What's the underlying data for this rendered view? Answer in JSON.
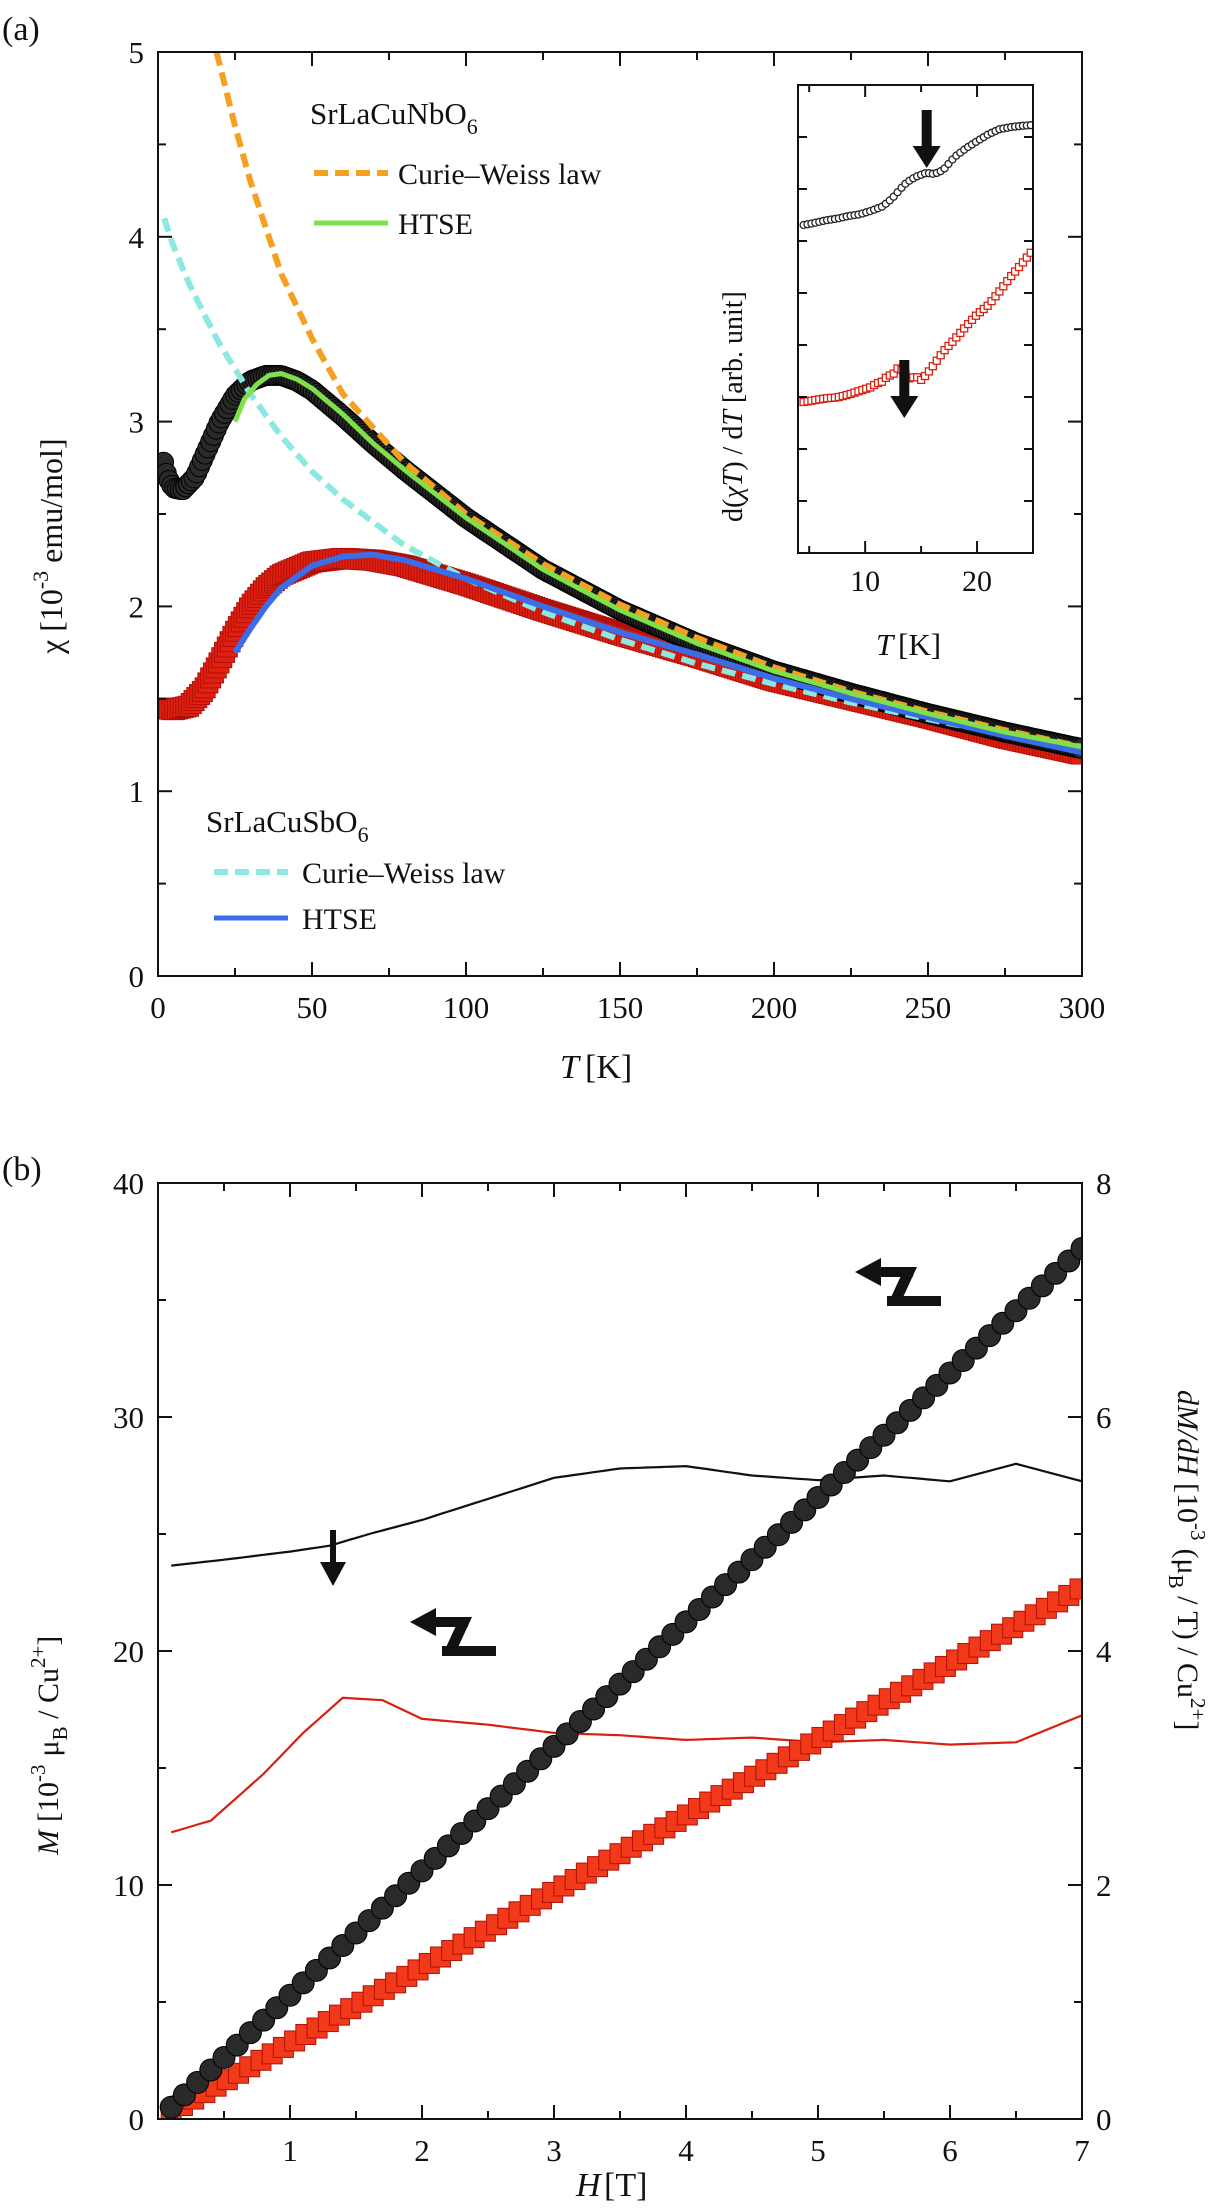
{
  "chart_data": [
    {
      "panel": "(a)",
      "type": "line",
      "xlabel_var": "T",
      "xlabel_unit": "[K]",
      "ylabel_sym": "χ",
      "ylabel_pre": "[10",
      "ylabel_exp": "-3",
      "ylabel_post": " emu/mol]",
      "xlim": [
        0,
        300
      ],
      "ylim": [
        0,
        5
      ],
      "xticks": [
        "0",
        "50",
        "100",
        "150",
        "200",
        "250",
        "300"
      ],
      "yticks": [
        "0",
        "1",
        "2",
        "3",
        "4",
        "5"
      ],
      "legend_nb_title": "SrLaCuNbO",
      "legend_nb_sub": "6",
      "legend_sb_title": "SrLaCuSbO",
      "legend_sb_sub": "6",
      "legend_cw": "Curie–Weiss law",
      "legend_htse": "HTSE",
      "colors": {
        "nb_data": "#1a1a1a",
        "sb_data": "#e02010",
        "nb_cw": "#f5a020",
        "nb_htse": "#7fe04a",
        "sb_cw": "#8ce8e0",
        "sb_htse": "#3b6de8"
      },
      "series": [
        {
          "name": "SrLaCuNbO6 data",
          "x": [
            1.8,
            3,
            5,
            8,
            12,
            16,
            20,
            25,
            30,
            35,
            40,
            45,
            50,
            60,
            70,
            80,
            100,
            125,
            150,
            175,
            200,
            225,
            250,
            275,
            300
          ],
          "y": [
            2.78,
            2.7,
            2.64,
            2.63,
            2.7,
            2.85,
            3.0,
            3.14,
            3.22,
            3.25,
            3.25,
            3.22,
            3.17,
            3.03,
            2.88,
            2.74,
            2.48,
            2.2,
            1.98,
            1.8,
            1.65,
            1.53,
            1.42,
            1.32,
            1.23
          ]
        },
        {
          "name": "SrLaCuSbO6 data",
          "x": [
            1.8,
            5,
            10,
            15,
            20,
            25,
            30,
            35,
            40,
            50,
            60,
            70,
            80,
            90,
            100,
            125,
            150,
            175,
            200,
            225,
            250,
            275,
            300
          ],
          "y": [
            1.45,
            1.44,
            1.46,
            1.55,
            1.7,
            1.86,
            2.0,
            2.1,
            2.17,
            2.24,
            2.26,
            2.25,
            2.22,
            2.17,
            2.12,
            1.98,
            1.85,
            1.73,
            1.6,
            1.5,
            1.4,
            1.29,
            1.2
          ]
        },
        {
          "name": "SrLaCuNbO6 Curie-Weiss law",
          "x": [
            19,
            25,
            30,
            40,
            50,
            60,
            80,
            100,
            125,
            150,
            175,
            200,
            225,
            250,
            275,
            300
          ],
          "y": [
            5.0,
            4.6,
            4.3,
            3.8,
            3.45,
            3.15,
            2.78,
            2.5,
            2.23,
            2.01,
            1.83,
            1.67,
            1.54,
            1.43,
            1.33,
            1.24
          ]
        },
        {
          "name": "SrLaCuNbO6 HTSE",
          "x": [
            25,
            28,
            32,
            36,
            40,
            45,
            50,
            60,
            70,
            80,
            100,
            125,
            150,
            175,
            200,
            225,
            250,
            275,
            300
          ],
          "y": [
            3.0,
            3.12,
            3.2,
            3.25,
            3.26,
            3.23,
            3.18,
            3.04,
            2.88,
            2.74,
            2.48,
            2.2,
            1.98,
            1.8,
            1.65,
            1.53,
            1.42,
            1.32,
            1.24
          ]
        },
        {
          "name": "SrLaCuSbO6 Curie-Weiss law",
          "x": [
            2,
            5,
            10,
            15,
            20,
            30,
            40,
            50,
            60,
            80,
            100,
            125,
            150,
            175,
            200,
            225,
            250,
            275,
            300
          ],
          "y": [
            4.1,
            3.95,
            3.75,
            3.58,
            3.42,
            3.15,
            2.92,
            2.73,
            2.58,
            2.33,
            2.15,
            1.97,
            1.82,
            1.69,
            1.58,
            1.48,
            1.39,
            1.31,
            1.23
          ]
        },
        {
          "name": "SrLaCuSbO6 HTSE",
          "x": [
            25,
            30,
            35,
            40,
            50,
            60,
            70,
            80,
            90,
            100,
            125,
            150,
            175,
            200,
            225,
            250,
            275,
            300
          ],
          "y": [
            1.75,
            1.88,
            2.0,
            2.1,
            2.22,
            2.27,
            2.28,
            2.25,
            2.2,
            2.15,
            2.0,
            1.86,
            1.74,
            1.61,
            1.5,
            1.4,
            1.3,
            1.21
          ]
        }
      ]
    },
    {
      "panel": "inset of (a)",
      "type": "scatter",
      "xlabel_var": "T",
      "xlabel_unit": "[K]",
      "ylabel_pre": "d(",
      "ylabel_mid": "χT",
      "ylabel_mid2": ") / d",
      "ylabel_var": "T",
      "ylabel_post": "  [arb. unit]",
      "xlim": [
        4,
        25
      ],
      "xticks": [
        "10",
        "20"
      ],
      "arrow_labels_x": [
        15.5,
        13.5
      ],
      "series": [
        {
          "name": "SrLaCuNbO6",
          "x": [
            4.5,
            5.5,
            6.5,
            7.5,
            8.5,
            9.5,
            10.5,
            11.5,
            12,
            12.5,
            13,
            13.5,
            14,
            14.5,
            15,
            15.5,
            16,
            16.5,
            17,
            17.5,
            18,
            19,
            20,
            21,
            22,
            23,
            24,
            25
          ],
          "y": [
            0.15,
            0.2,
            0.26,
            0.3,
            0.36,
            0.4,
            0.48,
            0.58,
            0.68,
            0.8,
            0.95,
            1.1,
            1.2,
            1.28,
            1.33,
            1.38,
            1.35,
            1.38,
            1.45,
            1.6,
            1.75,
            1.95,
            2.12,
            2.28,
            2.4,
            2.45,
            2.48,
            2.5
          ]
        },
        {
          "name": "SrLaCuSbO6",
          "x": [
            4.5,
            5.5,
            6.5,
            7.5,
            8.5,
            9.5,
            10.5,
            11,
            11.5,
            12,
            12.5,
            13,
            13.5,
            14,
            14.5,
            15,
            15.5,
            16,
            17,
            18,
            19,
            20,
            21,
            22,
            23,
            24,
            25
          ],
          "y": [
            0.0,
            0.02,
            0.04,
            0.05,
            0.08,
            0.12,
            0.16,
            0.2,
            0.22,
            0.28,
            0.3,
            0.38,
            0.32,
            0.25,
            0.28,
            0.24,
            0.3,
            0.38,
            0.55,
            0.68,
            0.82,
            0.95,
            1.05,
            1.2,
            1.36,
            1.5,
            1.65
          ]
        }
      ]
    },
    {
      "panel": "(b)",
      "type": "line",
      "xlabel_var": "H",
      "xlabel_unit": "[T]",
      "ylabel_var": "M",
      "ylabel_pre": "[10",
      "ylabel_exp": "-3",
      "ylabel_mu": "μ",
      "ylabel_musub": "B",
      "ylabel_post": " / Cu",
      "ylabel_post_sup": "2+",
      "ylabel_end": "]",
      "y2label_var": "dM/dH",
      "y2label_pre": "[10",
      "y2label_exp": "-3",
      "y2label_mid": "(μ",
      "y2label_musub": "B",
      "y2label_post": " / T) / Cu",
      "y2label_post_sup": "2+",
      "y2label_end": "]",
      "xlim": [
        0,
        7
      ],
      "ylim": [
        0,
        40
      ],
      "y2lim": [
        0,
        8
      ],
      "xticks": [
        "1",
        "2",
        "3",
        "4",
        "5",
        "6",
        "7"
      ],
      "yticks": [
        "0",
        "10",
        "20",
        "30",
        "40"
      ],
      "y2ticks": [
        "0",
        "2",
        "4",
        "6",
        "8"
      ],
      "series": [
        {
          "name": "SrLaCuNbO6 M",
          "axis": "left",
          "x": [
            0.1,
            7.0
          ],
          "y": [
            0.5,
            37.2
          ]
        },
        {
          "name": "SrLaCuSbO6 M",
          "axis": "left",
          "x": [
            0.1,
            7.0
          ],
          "y": [
            0.3,
            22.7
          ]
        },
        {
          "name": "SrLaCuNbO6 dM/dH",
          "axis": "right",
          "x": [
            0.1,
            0.5,
            1.0,
            1.3,
            1.6,
            2.0,
            2.5,
            3.0,
            3.5,
            4.0,
            4.5,
            5.0,
            5.5,
            6.0,
            6.5,
            7.0
          ],
          "y": [
            4.73,
            4.78,
            4.85,
            4.9,
            5.0,
            5.12,
            5.3,
            5.48,
            5.56,
            5.58,
            5.5,
            5.46,
            5.5,
            5.45,
            5.6,
            5.45
          ]
        },
        {
          "name": "SrLaCuSbO6 dM/dH",
          "axis": "right",
          "x": [
            0.1,
            0.4,
            0.8,
            1.1,
            1.4,
            1.7,
            2.0,
            2.5,
            3.0,
            3.5,
            4.0,
            4.5,
            5.0,
            5.5,
            6.0,
            6.5,
            7.0
          ],
          "y": [
            2.45,
            2.55,
            2.95,
            3.3,
            3.6,
            3.58,
            3.42,
            3.37,
            3.3,
            3.28,
            3.24,
            3.26,
            3.22,
            3.24,
            3.2,
            3.22,
            3.45
          ]
        }
      ]
    }
  ],
  "panel_labels": [
    "(a)",
    "(b)"
  ]
}
